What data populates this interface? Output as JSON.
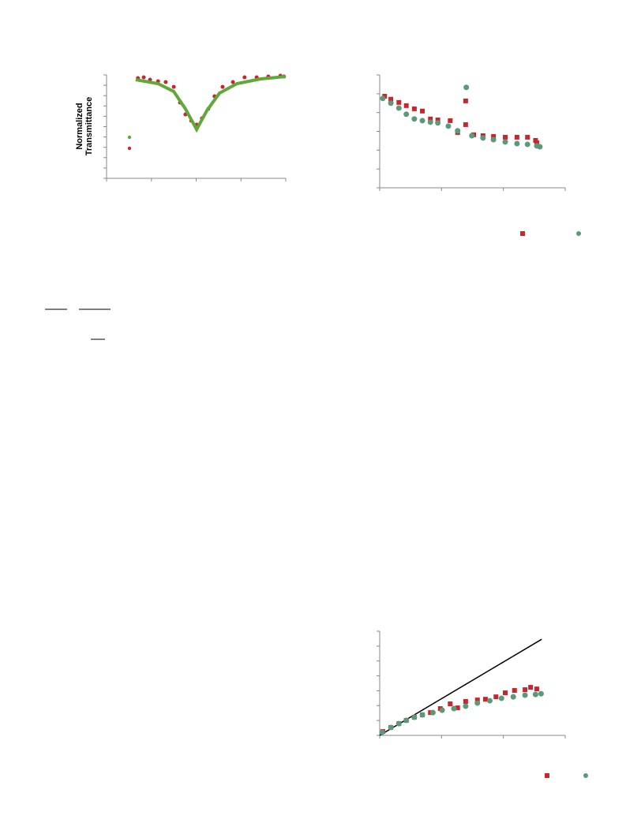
{
  "chart_data": [
    {
      "type": "scatter",
      "y_label": "Normalized Transmittance",
      "xlim": [
        0,
        4
      ],
      "ylim": [
        0,
        10
      ],
      "xticks": [
        0,
        1,
        2,
        3,
        4
      ],
      "yticks": [
        0,
        1,
        2,
        3,
        4,
        5,
        6,
        7,
        8,
        9,
        10
      ],
      "series": [
        {
          "kind": "points",
          "color": "#c8262c",
          "x": [
            0.7,
            0.83,
            0.97,
            1.15,
            1.32,
            1.5,
            1.64,
            1.76,
            1.89,
            2.01,
            2.13,
            2.27,
            2.41,
            2.59,
            2.82,
            3.08,
            3.35,
            3.61,
            3.88,
            3.96
          ],
          "values": [
            9.69,
            9.77,
            9.54,
            9.39,
            9.31,
            8.85,
            7.33,
            6.18,
            5.57,
            5.19,
            5.8,
            6.72,
            7.94,
            8.85,
            9.31,
            9.77,
            9.77,
            9.85,
            9.92,
            9.85
          ]
        },
        {
          "kind": "line",
          "color": "#5fa83a",
          "x": [
            0.65,
            1.15,
            1.5,
            1.76,
            2.01,
            2.24,
            2.52,
            2.91,
            3.44,
            4.0
          ],
          "values": [
            9.54,
            9.16,
            8.4,
            6.72,
            4.73,
            6.56,
            8.24,
            9.16,
            9.62,
            9.85
          ]
        }
      ]
    },
    {
      "type": "scatter",
      "xlim": [
        0,
        3
      ],
      "ylim": [
        0,
        6
      ],
      "xticks": [
        0,
        1,
        2,
        3
      ],
      "yticks": [
        0,
        1,
        2,
        3,
        4,
        5,
        6
      ],
      "series": [
        {
          "kind": "squares",
          "color": "#c8262c",
          "x": [
            0.08,
            0.18,
            0.31,
            0.43,
            0.56,
            0.69,
            0.82,
            0.94,
            1.14,
            1.26,
            1.39,
            1.39,
            1.52,
            1.67,
            1.84,
            2.03,
            2.22,
            2.39,
            2.52,
            2.54
          ],
          "values": [
            4.87,
            4.71,
            4.54,
            4.37,
            4.2,
            4.08,
            3.66,
            3.61,
            3.57,
            2.94,
            4.62,
            3.36,
            2.82,
            2.77,
            2.73,
            2.69,
            2.69,
            2.69,
            2.52,
            2.39
          ]
        },
        {
          "kind": "points",
          "color": "#5a9a78",
          "x": [
            0.05,
            0.18,
            0.31,
            0.43,
            0.56,
            0.69,
            0.82,
            0.94,
            1.11,
            1.26,
            1.4,
            1.49,
            1.67,
            1.84,
            2.03,
            2.22,
            2.39,
            2.54,
            2.59
          ],
          "values": [
            4.75,
            4.5,
            4.24,
            3.91,
            3.66,
            3.57,
            3.49,
            3.45,
            3.28,
            3.03,
            5.34,
            2.77,
            2.65,
            2.56,
            2.44,
            2.35,
            2.31,
            2.23,
            2.18
          ]
        }
      ]
    },
    {
      "type": "scatter",
      "xlim": [
        0,
        3
      ],
      "ylim": [
        0,
        7
      ],
      "xticks": [
        0,
        1,
        2,
        3
      ],
      "yticks": [
        0,
        1,
        2,
        3,
        4,
        5,
        6,
        7
      ],
      "series": [
        {
          "kind": "line",
          "color": "#000000",
          "x": [
            0,
            2.62
          ],
          "values": [
            0,
            6.46
          ]
        },
        {
          "kind": "squares",
          "color": "#c8262c",
          "x": [
            0.05,
            0.18,
            0.31,
            0.43,
            0.56,
            0.69,
            0.82,
            0.98,
            1.14,
            1.26,
            1.39,
            1.58,
            1.71,
            1.88,
            2.03,
            2.18,
            2.35,
            2.44,
            2.54
          ],
          "values": [
            0.26,
            0.53,
            0.79,
            1.01,
            1.22,
            1.38,
            1.53,
            1.8,
            2.12,
            1.85,
            2.28,
            2.38,
            2.43,
            2.59,
            2.86,
            3.02,
            3.07,
            3.23,
            3.12
          ]
        },
        {
          "kind": "points",
          "color": "#5a9a78",
          "x": [
            0.04,
            0.18,
            0.31,
            0.43,
            0.56,
            0.69,
            0.86,
            1.01,
            1.2,
            1.39,
            1.58,
            1.78,
            1.97,
            2.16,
            2.35,
            2.52,
            2.61
          ],
          "values": [
            0.21,
            0.53,
            0.79,
            1.01,
            1.22,
            1.38,
            1.53,
            1.69,
            1.8,
            1.96,
            2.17,
            2.33,
            2.49,
            2.59,
            2.7,
            2.75,
            2.8
          ]
        }
      ]
    }
  ]
}
